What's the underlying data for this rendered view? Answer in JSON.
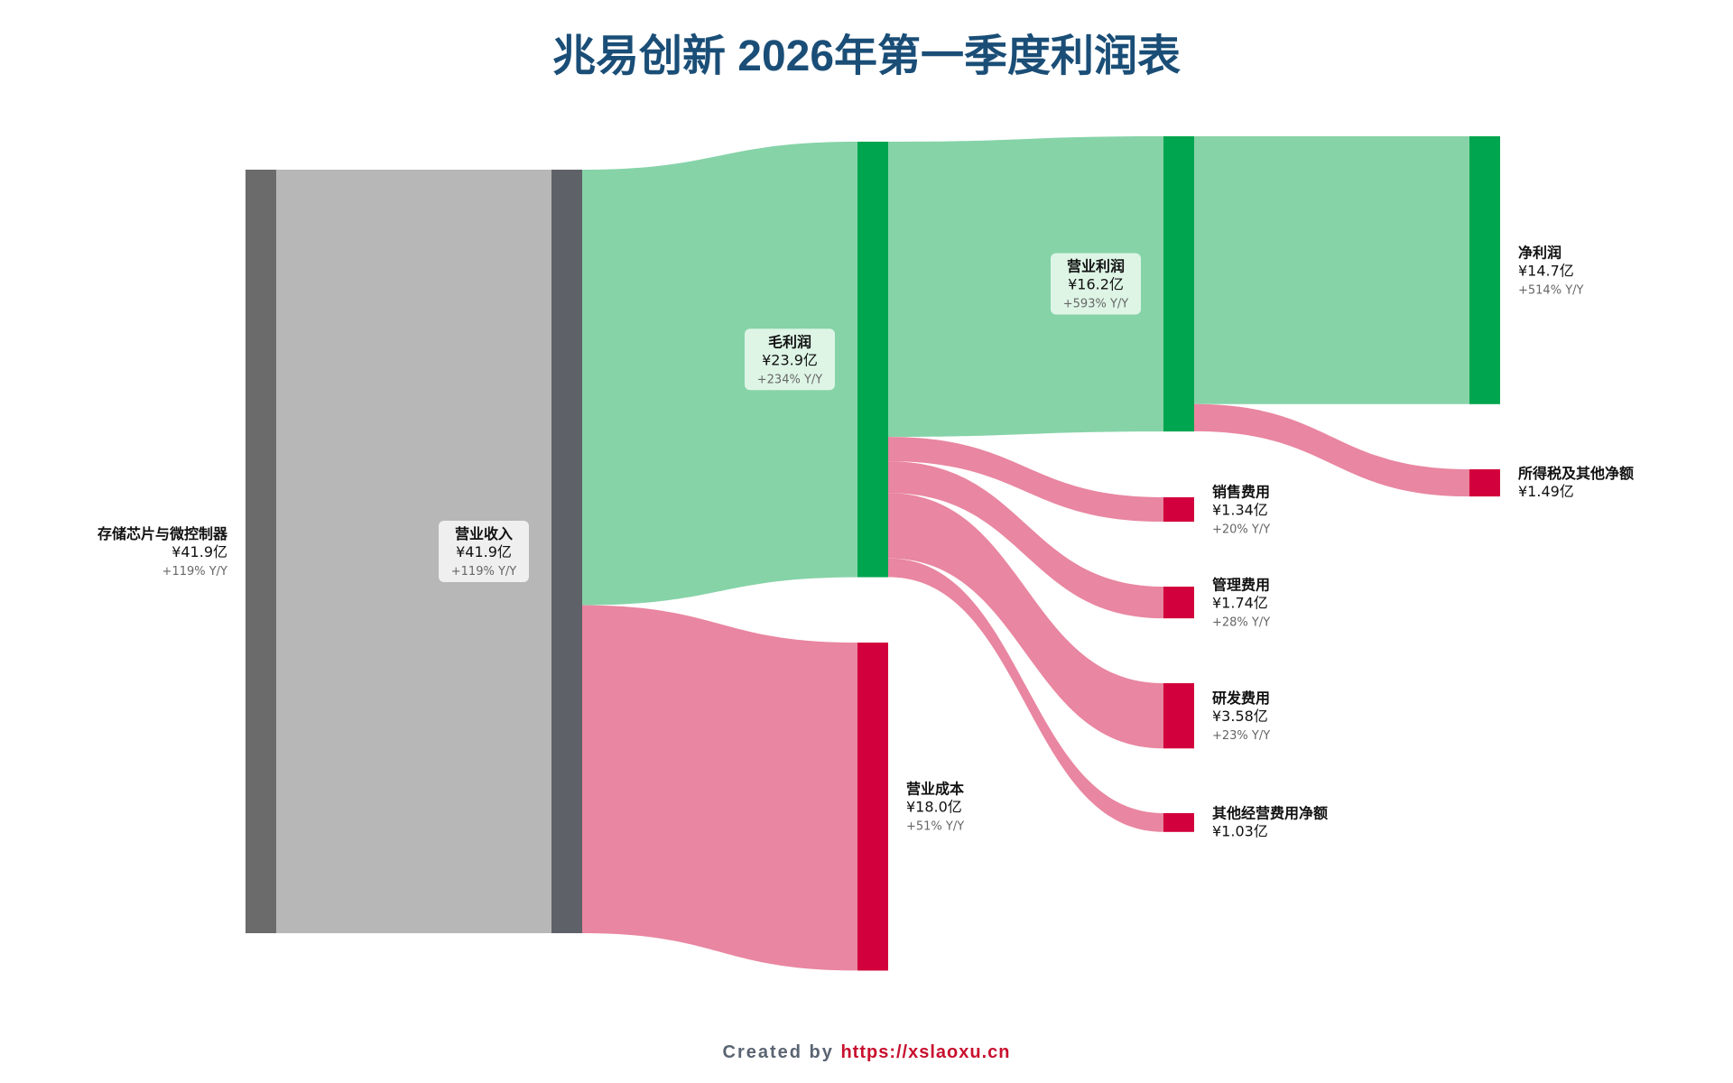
{
  "title": "兆易创新 2026年第一季度利润表",
  "credit": {
    "prefix": "Created by ",
    "url": "https://xslaoxu.cn"
  },
  "colors": {
    "source_bar": "#6b6b6b",
    "revenue_bar": "#5f6168",
    "revenue_flow": "#b7b7b7",
    "profit_bar": "#00a54f",
    "profit_flow": "#86d3a8",
    "cost_bar": "#d2003c",
    "cost_flow": "#e986a1",
    "label_box_revenue": "#f3f3f3",
    "label_box_profit": "#e6f7ec"
  },
  "chart_data": {
    "type": "sankey",
    "title": "兆易创新 2026年第一季度利润表",
    "unit": "亿",
    "nodes": [
      {
        "id": "storage",
        "name": "存储芯片与微控制器",
        "value_label": "¥41.9亿",
        "yoy": "+119% Y/Y",
        "value": 41.9
      },
      {
        "id": "revenue",
        "name": "营业收入",
        "value_label": "¥41.9亿",
        "yoy": "+119% Y/Y",
        "value": 41.9
      },
      {
        "id": "gross",
        "name": "毛利润",
        "value_label": "¥23.9亿",
        "yoy": "+234% Y/Y",
        "value": 23.9
      },
      {
        "id": "cost",
        "name": "营业成本",
        "value_label": "¥18.0亿",
        "yoy": "+51% Y/Y",
        "value": 18.0
      },
      {
        "id": "oper",
        "name": "营业利润",
        "value_label": "¥16.2亿",
        "yoy": "+593% Y/Y",
        "value": 16.2
      },
      {
        "id": "sales",
        "name": "销售费用",
        "value_label": "¥1.34亿",
        "yoy": "+20% Y/Y",
        "value": 1.34
      },
      {
        "id": "admin",
        "name": "管理费用",
        "value_label": "¥1.74亿",
        "yoy": "+28% Y/Y",
        "value": 1.74
      },
      {
        "id": "rd",
        "name": "研发费用",
        "value_label": "¥3.58亿",
        "yoy": "+23% Y/Y",
        "value": 3.58
      },
      {
        "id": "otherop",
        "name": "其他经营费用净额",
        "value_label": "¥1.03亿",
        "yoy": "",
        "value": 1.03
      },
      {
        "id": "net",
        "name": "净利润",
        "value_label": "¥14.7亿",
        "yoy": "+514% Y/Y",
        "value": 14.7
      },
      {
        "id": "tax",
        "name": "所得税及其他净额",
        "value_label": "¥1.49亿",
        "yoy": "",
        "value": 1.49
      }
    ],
    "links": [
      {
        "source": "storage",
        "target": "revenue",
        "value": 41.9
      },
      {
        "source": "revenue",
        "target": "gross",
        "value": 23.9
      },
      {
        "source": "revenue",
        "target": "cost",
        "value": 18.0
      },
      {
        "source": "gross",
        "target": "oper",
        "value": 16.2
      },
      {
        "source": "gross",
        "target": "sales",
        "value": 1.34
      },
      {
        "source": "gross",
        "target": "admin",
        "value": 1.74
      },
      {
        "source": "gross",
        "target": "rd",
        "value": 3.58
      },
      {
        "source": "gross",
        "target": "otherop",
        "value": 1.03
      },
      {
        "source": "oper",
        "target": "net",
        "value": 14.7
      },
      {
        "source": "oper",
        "target": "tax",
        "value": 1.49
      }
    ]
  }
}
